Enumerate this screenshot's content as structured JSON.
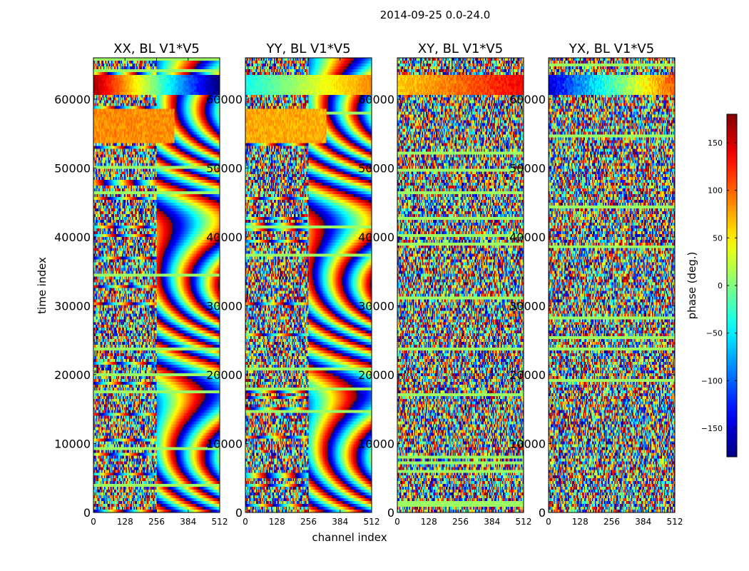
{
  "suptitle": "2014-09-25 0.0-24.0",
  "chart_data": {
    "type": "heatmap",
    "title": "2014-09-25 0.0-24.0",
    "xlabel": "channel index",
    "ylabel": "time index",
    "xlim": [
      0,
      512
    ],
    "ylim": [
      0,
      66000
    ],
    "xticks": [
      0,
      128,
      256,
      384,
      512
    ],
    "yticks": [
      0,
      10000,
      20000,
      30000,
      40000,
      50000,
      60000
    ],
    "ytick_labels": [
      "0",
      "10000",
      "20000",
      "30000",
      "40000",
      "50000",
      "60000"
    ],
    "xtick_labels": [
      "0",
      "128",
      "256",
      "384",
      "512"
    ],
    "panels": [
      {
        "title": "XX, BL V1*V5",
        "polarization": "XX"
      },
      {
        "title": "YY, BL V1*V5",
        "polarization": "YY"
      },
      {
        "title": "XY, BL V1*V5",
        "polarization": "XY"
      },
      {
        "title": "YX, BL V1*V5",
        "polarization": "YX"
      }
    ],
    "colorbar": {
      "label": "phase (deg.)",
      "range": [
        -180,
        180
      ],
      "ticks": [
        -150,
        -100,
        -50,
        0,
        50,
        100,
        150
      ],
      "tick_labels": [
        "−150",
        "−100",
        "−50",
        "0",
        "50",
        "100",
        "150"
      ],
      "colormap": "jet"
    }
  }
}
